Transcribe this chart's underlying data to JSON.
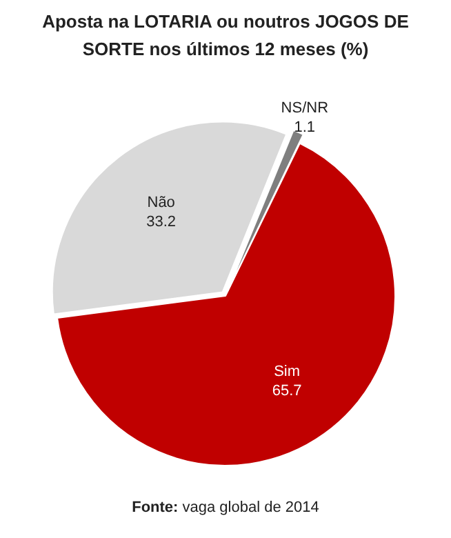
{
  "chart_data": {
    "type": "pie",
    "title": "Aposta na LOTARIA ou noutros JOGOS DE SORTE nos últimos 12 meses (%)",
    "categories": [
      "Sim",
      "Não",
      "NS/NR"
    ],
    "values": [
      65.7,
      33.2,
      1.1
    ],
    "colors": [
      "#c00000",
      "#d9d9d9",
      "#7f7f7f"
    ],
    "data_labels": true,
    "legend": false,
    "annotations": [
      "Fonte: vaga global de 2014"
    ]
  }
}
